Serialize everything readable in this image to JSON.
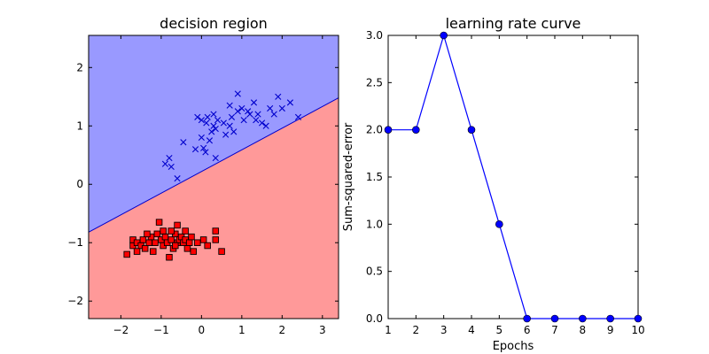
{
  "chart_data": [
    {
      "type": "scatter",
      "title": "decision region",
      "xlabel": "",
      "ylabel": "",
      "xlim": [
        -2.8,
        3.4
      ],
      "ylim": [
        -2.3,
        2.55
      ],
      "xticks": [
        -2,
        -1,
        0,
        1,
        2,
        3
      ],
      "yticks": [
        -2,
        -1,
        0,
        1,
        2
      ],
      "xtick_labels": [
        "−2",
        "−1",
        "0",
        "1",
        "2",
        "3"
      ],
      "ytick_labels": [
        "−2",
        "−1",
        "0",
        "1",
        "2"
      ],
      "grid": false,
      "colors": {
        "class_pos_region": "#9999ff",
        "class_neg_region": "#ff9999",
        "class_pos_marker": "#0000cc",
        "class_neg_marker": "#ff0000",
        "boundary": "#0000cc"
      },
      "boundary_line": {
        "x": [
          -2.8,
          3.4
        ],
        "y": [
          -0.82,
          1.48
        ]
      },
      "series": [
        {
          "marker": "x",
          "points": [
            [
              -0.45,
              0.72
            ],
            [
              0.0,
              0.8
            ],
            [
              0.05,
              0.62
            ],
            [
              0.2,
              0.75
            ],
            [
              0.25,
              0.9
            ],
            [
              0.0,
              1.1
            ],
            [
              -0.1,
              1.15
            ],
            [
              0.12,
              1.05
            ],
            [
              0.3,
              1.0
            ],
            [
              0.35,
              0.95
            ],
            [
              0.4,
              1.1
            ],
            [
              0.3,
              1.2
            ],
            [
              0.55,
              1.05
            ],
            [
              0.6,
              0.85
            ],
            [
              0.7,
              1.0
            ],
            [
              0.8,
              0.9
            ],
            [
              0.75,
              1.15
            ],
            [
              0.9,
              1.25
            ],
            [
              1.0,
              1.3
            ],
            [
              1.05,
              1.1
            ],
            [
              0.9,
              1.55
            ],
            [
              0.7,
              1.35
            ],
            [
              1.2,
              1.2
            ],
            [
              1.3,
              1.4
            ],
            [
              1.35,
              1.1
            ],
            [
              1.4,
              1.2
            ],
            [
              1.5,
              1.05
            ],
            [
              1.6,
              1.0
            ],
            [
              1.7,
              1.3
            ],
            [
              1.8,
              1.2
            ],
            [
              1.9,
              1.5
            ],
            [
              2.0,
              1.3
            ],
            [
              2.2,
              1.4
            ],
            [
              2.4,
              1.15
            ],
            [
              -0.9,
              0.35
            ],
            [
              -0.8,
              0.45
            ],
            [
              -0.75,
              0.3
            ],
            [
              -0.6,
              0.1
            ],
            [
              0.1,
              0.55
            ],
            [
              0.35,
              0.45
            ],
            [
              0.15,
              1.15
            ],
            [
              -0.15,
              0.6
            ],
            [
              1.15,
              1.25
            ]
          ]
        },
        {
          "marker": "s",
          "points": [
            [
              -1.85,
              -1.2
            ],
            [
              -1.7,
              -1.05
            ],
            [
              -1.7,
              -0.95
            ],
            [
              -1.6,
              -1.0
            ],
            [
              -1.5,
              -1.05
            ],
            [
              -1.45,
              -0.95
            ],
            [
              -1.4,
              -1.1
            ],
            [
              -1.3,
              -1.0
            ],
            [
              -1.25,
              -0.9
            ],
            [
              -1.2,
              -1.15
            ],
            [
              -1.1,
              -0.85
            ],
            [
              -1.05,
              -0.65
            ],
            [
              -1.0,
              -0.95
            ],
            [
              -0.95,
              -1.05
            ],
            [
              -0.9,
              -0.9
            ],
            [
              -0.85,
              -1.0
            ],
            [
              -0.8,
              -1.25
            ],
            [
              -0.75,
              -0.95
            ],
            [
              -0.7,
              -1.1
            ],
            [
              -0.65,
              -0.85
            ],
            [
              -0.6,
              -1.0
            ],
            [
              -0.55,
              -0.95
            ],
            [
              -0.5,
              -0.9
            ],
            [
              -0.45,
              -1.0
            ],
            [
              -0.4,
              -0.95
            ],
            [
              -0.3,
              -1.0
            ],
            [
              -0.25,
              -0.9
            ],
            [
              -0.2,
              -1.15
            ],
            [
              -0.1,
              -1.0
            ],
            [
              0.05,
              -0.95
            ],
            [
              0.15,
              -1.05
            ],
            [
              0.35,
              -0.8
            ],
            [
              0.35,
              -0.95
            ],
            [
              0.5,
              -1.15
            ],
            [
              -0.6,
              -0.7
            ],
            [
              -0.75,
              -0.8
            ],
            [
              -1.35,
              -0.85
            ],
            [
              -0.95,
              -0.8
            ],
            [
              -1.15,
              -1.0
            ],
            [
              -0.35,
              -1.1
            ],
            [
              -0.65,
              -1.05
            ],
            [
              -0.4,
              -0.8
            ],
            [
              -1.6,
              -1.15
            ]
          ]
        }
      ]
    },
    {
      "type": "line",
      "title": "learning rate curve",
      "xlabel": "Epochs",
      "ylabel": "Sum-squared-error",
      "xlim": [
        1,
        10
      ],
      "ylim": [
        0.0,
        3.0
      ],
      "xticks": [
        1,
        2,
        3,
        4,
        5,
        6,
        7,
        8,
        9,
        10
      ],
      "yticks": [
        0.0,
        0.5,
        1.0,
        1.5,
        2.0,
        2.5,
        3.0
      ],
      "xtick_labels": [
        "1",
        "2",
        "3",
        "4",
        "5",
        "6",
        "7",
        "8",
        "9",
        "10"
      ],
      "ytick_labels": [
        "0.0",
        "0.5",
        "1.0",
        "1.5",
        "2.0",
        "2.5",
        "3.0"
      ],
      "grid": false,
      "color": "#0000ff",
      "x": [
        1,
        2,
        3,
        4,
        5,
        6,
        7,
        8,
        9,
        10
      ],
      "y": [
        2,
        2,
        3,
        2,
        1,
        0,
        0,
        0,
        0,
        0
      ]
    }
  ]
}
